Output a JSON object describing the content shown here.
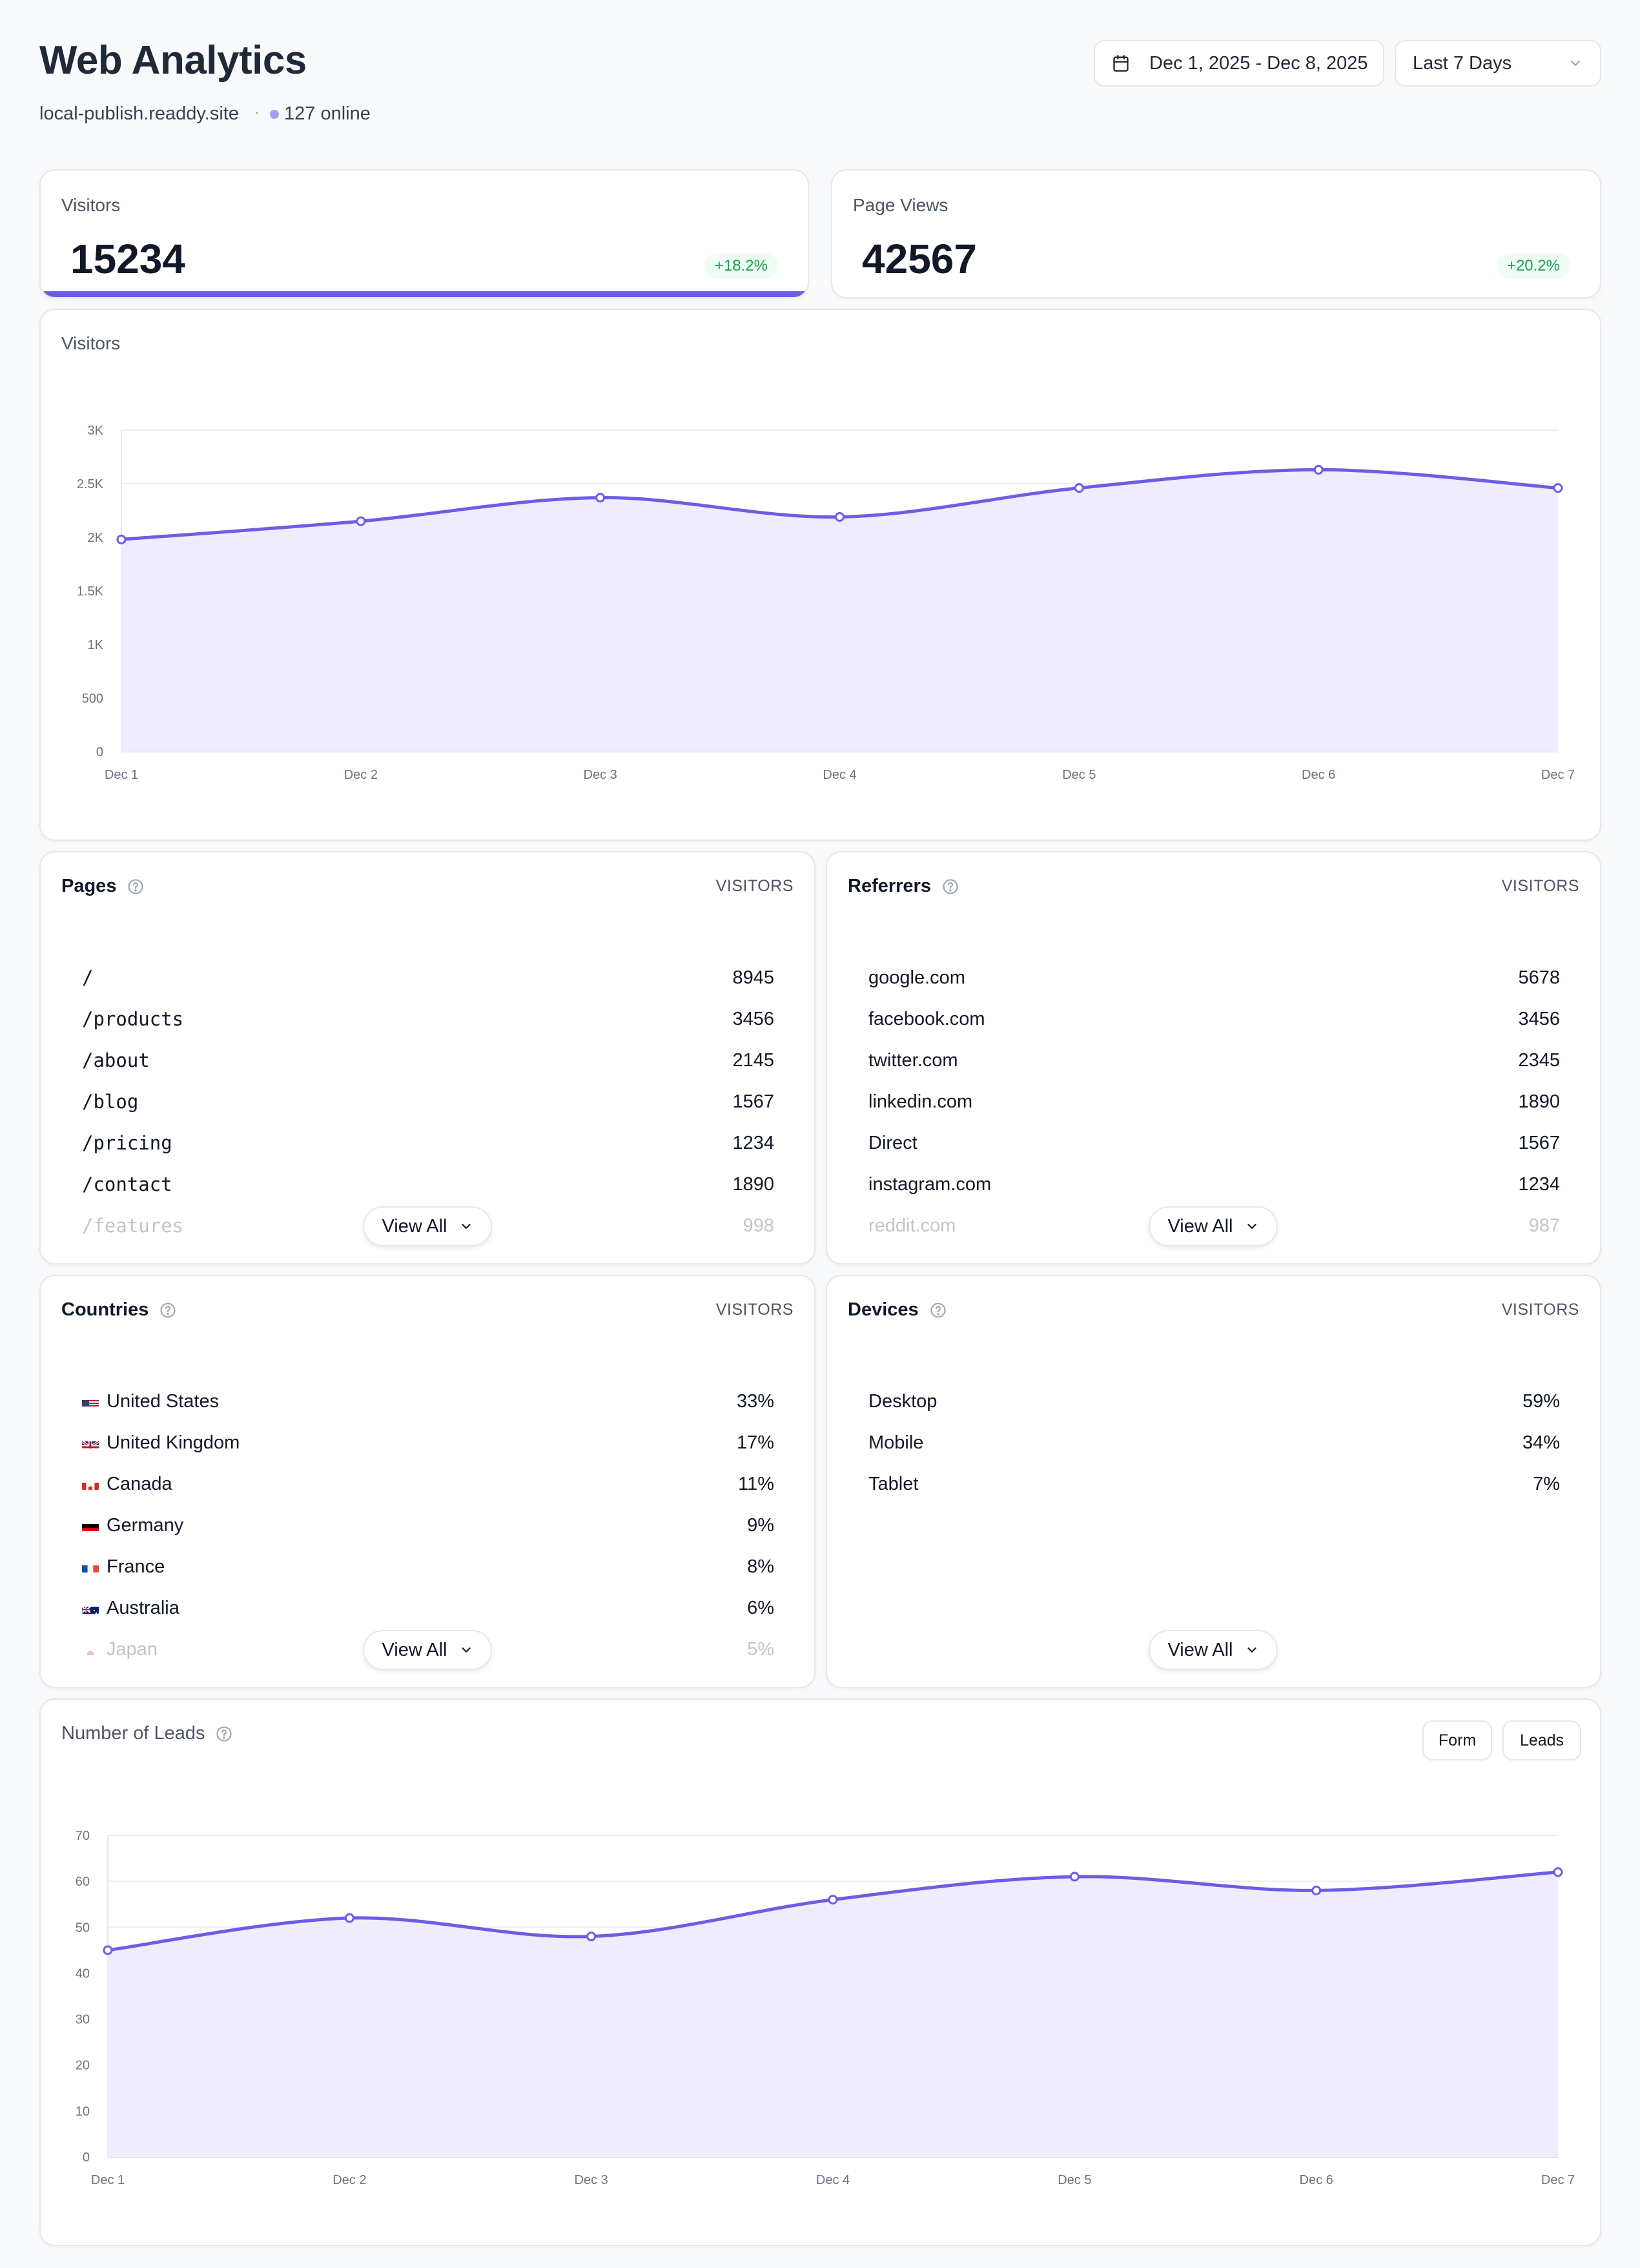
{
  "header": {
    "title": "Web Analytics",
    "site": "local-publish.readdy.site",
    "separator": "·",
    "online": "127 online",
    "date_range": "Dec 1, 2025 - Dec 8, 2025",
    "range_select": "Last 7 Days",
    "icons": {
      "calendar": "calendar-icon",
      "dropdown": "chevron-down-icon"
    }
  },
  "stats": [
    {
      "label": "Visitors",
      "value": "15234",
      "change": "+18.2%",
      "selected": true
    },
    {
      "label": "Page Views",
      "value": "42567",
      "change": "+20.2%",
      "selected": false
    }
  ],
  "visitors_chart": {
    "title": "Visitors",
    "chart_data": {
      "type": "area",
      "x": [
        "Dec 1",
        "Dec 2",
        "Dec 3",
        "Dec 4",
        "Dec 5",
        "Dec 6",
        "Dec 7"
      ],
      "y_ticks": [
        "0",
        "500",
        "1K",
        "1.5K",
        "2K",
        "2.5K",
        "3K"
      ],
      "ylim": [
        0,
        3000
      ],
      "series": [
        {
          "values": [
            1980,
            2150,
            2370,
            2190,
            2460,
            2630,
            2460
          ]
        }
      ],
      "grid": true,
      "color": "#6d5ce7"
    }
  },
  "pages": {
    "title": "Pages",
    "column": "VISITORS",
    "items": [
      {
        "label": "/",
        "value": "8945"
      },
      {
        "label": "/products",
        "value": "3456"
      },
      {
        "label": "/about",
        "value": "2145"
      },
      {
        "label": "/blog",
        "value": "1567"
      },
      {
        "label": "/pricing",
        "value": "1234"
      },
      {
        "label": "/contact",
        "value": "1890"
      },
      {
        "label": "/features",
        "value": "998"
      }
    ],
    "view_all": "View All"
  },
  "referrers": {
    "title": "Referrers",
    "column": "VISITORS",
    "items": [
      {
        "label": "google.com",
        "value": "5678"
      },
      {
        "label": "facebook.com",
        "value": "3456"
      },
      {
        "label": "twitter.com",
        "value": "2345"
      },
      {
        "label": "linkedin.com",
        "value": "1890"
      },
      {
        "label": "Direct",
        "value": "1567"
      },
      {
        "label": "instagram.com",
        "value": "1234"
      },
      {
        "label": "reddit.com",
        "value": "987"
      }
    ],
    "view_all": "View All"
  },
  "countries": {
    "title": "Countries",
    "column": "VISITORS",
    "items": [
      {
        "label": "United States",
        "value": "33%",
        "flag": "us-flag-icon"
      },
      {
        "label": "United Kingdom",
        "value": "17%",
        "flag": "uk-flag-icon"
      },
      {
        "label": "Canada",
        "value": "11%",
        "flag": "canada-flag-icon"
      },
      {
        "label": "Germany",
        "value": "9%",
        "flag": "germany-flag-icon"
      },
      {
        "label": "France",
        "value": "8%",
        "flag": "france-flag-icon"
      },
      {
        "label": "Australia",
        "value": "6%",
        "flag": "australia-flag-icon"
      },
      {
        "label": "Japan",
        "value": "5%",
        "flag": "japan-flag-icon"
      }
    ],
    "view_all": "View All"
  },
  "devices": {
    "title": "Devices",
    "column": "VISITORS",
    "items": [
      {
        "label": "Desktop",
        "value": "59%"
      },
      {
        "label": "Mobile",
        "value": "34%"
      },
      {
        "label": "Tablet",
        "value": "7%"
      }
    ],
    "view_all": "View All"
  },
  "leads_chart": {
    "title": "Number of Leads",
    "buttons": [
      "Form",
      "Leads"
    ],
    "chart_data": {
      "type": "area",
      "x": [
        "Dec 1",
        "Dec 2",
        "Dec 3",
        "Dec 4",
        "Dec 5",
        "Dec 6",
        "Dec 7"
      ],
      "y_ticks": [
        "0",
        "10",
        "20",
        "30",
        "40",
        "50",
        "60",
        "70"
      ],
      "ylim": [
        0,
        70
      ],
      "series": [
        {
          "values": [
            45,
            52,
            48,
            56,
            61,
            58,
            62
          ]
        }
      ],
      "grid": true,
      "color": "#6d5ce7"
    }
  }
}
